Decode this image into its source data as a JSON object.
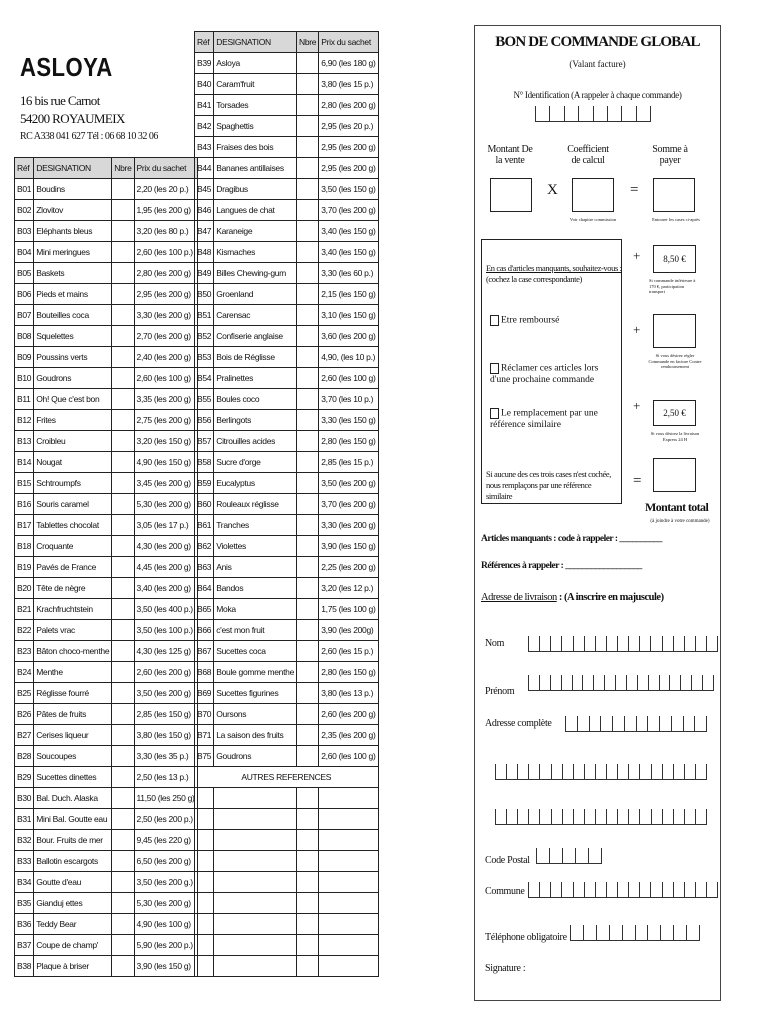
{
  "company": {
    "name": "ASLOYA",
    "address1": "16 bis rue Carnot",
    "address2": "54200 ROYAUMEIX",
    "rc": "RC A338 041 627  Tél : 06 68 10 32 06"
  },
  "table_headers": [
    "Réf",
    "DESIGNATION",
    "Nbre",
    "Prix du sachet"
  ],
  "left_rows": [
    [
      "B01",
      "Boudins",
      "2,20 (les 20 p.)"
    ],
    [
      "B02",
      "Zlovitov",
      "1,95 (les 200 g)"
    ],
    [
      "B03",
      "Eléphants bleus",
      "3,20 (les 80 p.)"
    ],
    [
      "B04",
      "Mini meringues",
      "2,60 (les 100 p.)"
    ],
    [
      "B05",
      "Baskets",
      "2,80 (les 200 g)"
    ],
    [
      "B06",
      "Pieds et mains",
      "2,95 (les 200 g)"
    ],
    [
      "B07",
      "Bouteilles coca",
      "3,30 (les 200 g)"
    ],
    [
      "B08",
      "Squelettes",
      "2,70 (les 200 g)"
    ],
    [
      "B09",
      "Poussins verts",
      "2,40 (les 200 g)"
    ],
    [
      "B10",
      "Goudrons",
      "2,60 (les 100 g)"
    ],
    [
      "B11",
      "Oh! Que c'est bon",
      "3,35 (les 200 g)"
    ],
    [
      "B12",
      "Frites",
      "2,75 (les 200 g)"
    ],
    [
      "B13",
      "Croibleu",
      "3,20 (les 150 g)"
    ],
    [
      "B14",
      "Nougat",
      "4,90 (les 150 g)"
    ],
    [
      "B15",
      "Schtroumpfs",
      "3,45 (les 200 g)"
    ],
    [
      "B16",
      "Souris caramel",
      "5,30 (les 200 g)"
    ],
    [
      "B17",
      "Tablettes chocolat",
      "3,05 (les 17 p.)"
    ],
    [
      "B18",
      "Croquante",
      "4,30 (les 200 g)"
    ],
    [
      "B19",
      "Pavés de France",
      "4,45 (les 200 g)"
    ],
    [
      "B20",
      "Tête de nègre",
      "3,40 (les 200 g)"
    ],
    [
      "B21",
      "Krachfruchtstein",
      "3,50 (les 400 p.)"
    ],
    [
      "B22",
      "Palets vrac",
      "3,50 (les 100 p.)"
    ],
    [
      "B23",
      "Bâton choco-menthe",
      "4,30 (les 125 g)"
    ],
    [
      "B24",
      "Menthe",
      "2,60 (les 200 g)"
    ],
    [
      "B25",
      "Réglisse fourré",
      "3,50 (les 200 g)"
    ],
    [
      "B26",
      "Pâtes de fruits",
      "2,85 (les 150 g)"
    ],
    [
      "B27",
      "Cerises liqueur",
      "3,80 (les 150 g)"
    ],
    [
      "B28",
      "Soucoupes",
      "3,30 (les 35 p.)"
    ],
    [
      "B29",
      "Sucettes dinettes",
      "2,50 (les 13 p.)"
    ],
    [
      "B30",
      "Bal. Duch. Alaska",
      "11,50 (les 250 g)"
    ],
    [
      "B31",
      "Mini Bal. Goutte eau",
      "2,50 (les 200 p.)"
    ],
    [
      "B32",
      "Bour. Fruits de mer",
      "9,45 (les 220 g)"
    ],
    [
      "B33",
      "Ballotin escargots",
      "6,50 (les 200 g)"
    ],
    [
      "B34",
      "Goutte d'eau",
      "3,50 (les 200 g.)"
    ],
    [
      "B35",
      "Gianduj ettes",
      "5,30 (les 200 g)"
    ],
    [
      "B36",
      "Teddy Bear",
      "4,90 (les 100 g)"
    ],
    [
      "B37",
      "Coupe de champ'",
      "5,90 (les 200 p.)"
    ],
    [
      "B38",
      "Plaque à briser",
      "3,90 (les 150 g)"
    ]
  ],
  "right_rows": [
    [
      "B39",
      "Asloya",
      "6,90 (les 180 g)"
    ],
    [
      "B40",
      "Caram'fruit",
      "3,80 (les 15 p.)"
    ],
    [
      "B41",
      "Torsades",
      "2,80 (les 200 g)"
    ],
    [
      "B42",
      "Spaghettis",
      "2,95 (les 20 p.)"
    ],
    [
      "B43",
      "Fraises des bois",
      "2,95 (les 200 g)"
    ],
    [
      "B44",
      "Bananes antillaises",
      "2,95 (les 200 g)"
    ],
    [
      "B45",
      "Dragibus",
      "3,50 (les 150 g)"
    ],
    [
      "B46",
      "Langues de chat",
      "3,70 (les 200 g)"
    ],
    [
      "B47",
      "Karaneige",
      "3,40 (les 150 g)"
    ],
    [
      "B48",
      "Kismaches",
      "3,40 (les 150 g)"
    ],
    [
      "B49",
      "Billes Chewing-gum",
      "3,30 (les 60 p.)"
    ],
    [
      "B50",
      "Groenland",
      "2,15 (les 150 g)"
    ],
    [
      "B51",
      "Carensac",
      "3,10 (les 150 g)"
    ],
    [
      "B52",
      "Confiserie anglaise",
      "3,60 (les 200 g)"
    ],
    [
      "B53",
      "Bois de Réglisse",
      "4,90, (les 10 p.)"
    ],
    [
      "B54",
      "Pralinettes",
      "2,60 (les 100 g)"
    ],
    [
      "B55",
      "Boules coco",
      "3,70 (les 10 p.)"
    ],
    [
      "B56",
      "Berlingots",
      "3,30 (les 150 g)"
    ],
    [
      "B57",
      "Citrouilles acides",
      "2,80 (les 150 g)"
    ],
    [
      "B58",
      "Sucre d'orge",
      "2,85 (les 15 p.)"
    ],
    [
      "B59",
      "Eucalyptus",
      "3,50 (les 200 g)"
    ],
    [
      "B60",
      "Rouleaux réglisse",
      "3,70 (les 200 g)"
    ],
    [
      "B61",
      "Tranches",
      "3,30 (les 200 g)"
    ],
    [
      "B62",
      "Violettes",
      "3,90 (les 150 g)"
    ],
    [
      "B63",
      "Anis",
      "2,25 (les 200 g)"
    ],
    [
      "B64",
      "Bandos",
      "3,20 (les 12 p.)"
    ],
    [
      "B65",
      "Moka",
      "1,75 (les 100 g)"
    ],
    [
      "B66",
      "c'est mon fruit",
      "3,90 (les 200g)"
    ],
    [
      "B67",
      "Sucettes coca",
      "2,60 (les 15 p.)"
    ],
    [
      "B68",
      "Boule gomme menthe",
      "2,80 (les 150 g)"
    ],
    [
      "B69",
      "Sucettes figurines",
      "3,80 (les 13 p.)"
    ],
    [
      "B70",
      "Oursons",
      "2,60 (les 200 g)"
    ],
    [
      "B71",
      "La saison des fruits",
      "2,35 (les 200 g)"
    ],
    [
      "B75",
      "Goudrons",
      "2,60 (les 100 g)"
    ]
  ],
  "other_refs_label": "AUTRES REFERENCES",
  "form": {
    "title": "BON DE COMMANDE GLOBAL",
    "subtitle": "(Valant facture)",
    "id_label": "N° Identification (A rappeler à chaque commande)",
    "col1": "Montant De la vente",
    "col2": "Coefficient de calcul",
    "col3": "Somme à payer",
    "times": "X",
    "equals": "=",
    "plus": "+",
    "note_coef": "Voir chapitre commission",
    "note_sum": "Entourer les cases ci-après",
    "missing_title": "En cas d'articles manquants, souhaitez-vous :",
    "missing_sub": "(cochez la case correspondante)",
    "opt1": "Etre remboursé",
    "opt2": "Réclamer ces articles lors d'une prochaine commande",
    "opt3": "Le remplacement par une référence similaire",
    "missing_note": "Si aucune des ces trois cases n'est cochée, nous remplaçons par une référence similaire",
    "fee1": "8,50 €",
    "fee1_note": "Si commande inférieure à 170 €, participation transport",
    "fee2_note": "Si vous désirez régler Commande en facture Contre remboursement",
    "fee3": "2,50 €",
    "fee3_note": "Si vous désirez la livraison Express 24 H",
    "total": "Montant total",
    "total_note": "(à joindre à votre commande)",
    "missing_code": "Articles manquants : code à rappeler : __________",
    "refs": "Références à rappeler : __________________",
    "delivery": "Adresse de livraison",
    "delivery_note": " : (A inscrire en majuscule)",
    "nom": "Nom",
    "prenom": "Prénom",
    "adresse": "Adresse complète",
    "cp": "Code Postal",
    "commune": "Commune",
    "tel": "Téléphone obligatoire",
    "signature": "Signature :"
  }
}
